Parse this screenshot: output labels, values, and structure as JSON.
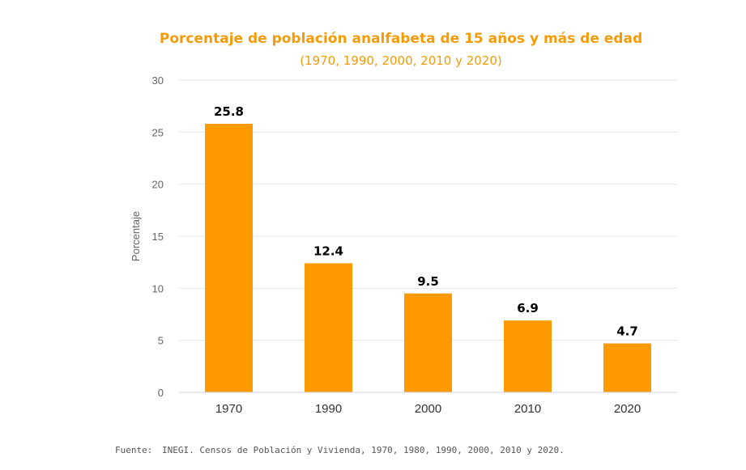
{
  "chart_data": {
    "type": "bar",
    "title": "Porcentaje de población analfabeta de 15 años y más de edad",
    "subtitle": "(1970, 1990, 2000, 2010 y 2020)",
    "ylabel": "Porcentaje",
    "xlabel": "",
    "categories": [
      "1970",
      "1990",
      "2000",
      "2010",
      "2020"
    ],
    "values": [
      25.8,
      12.4,
      9.5,
      6.9,
      4.7
    ],
    "data_labels": [
      "25.8",
      "12.4",
      "9.5",
      "6.9",
      "4.7"
    ],
    "ylim": [
      0,
      30
    ],
    "yticks": [
      0,
      5,
      10,
      15,
      20,
      25,
      30
    ],
    "grid": true,
    "legend": "none",
    "bar_color": "#ff9900",
    "title_color": "#f39c0a"
  },
  "footer": {
    "label": "Fuente:",
    "text": "INEGI. Censos de Población y Vivienda, 1970, 1980, 1990, 2000, 2010 y 2020."
  }
}
